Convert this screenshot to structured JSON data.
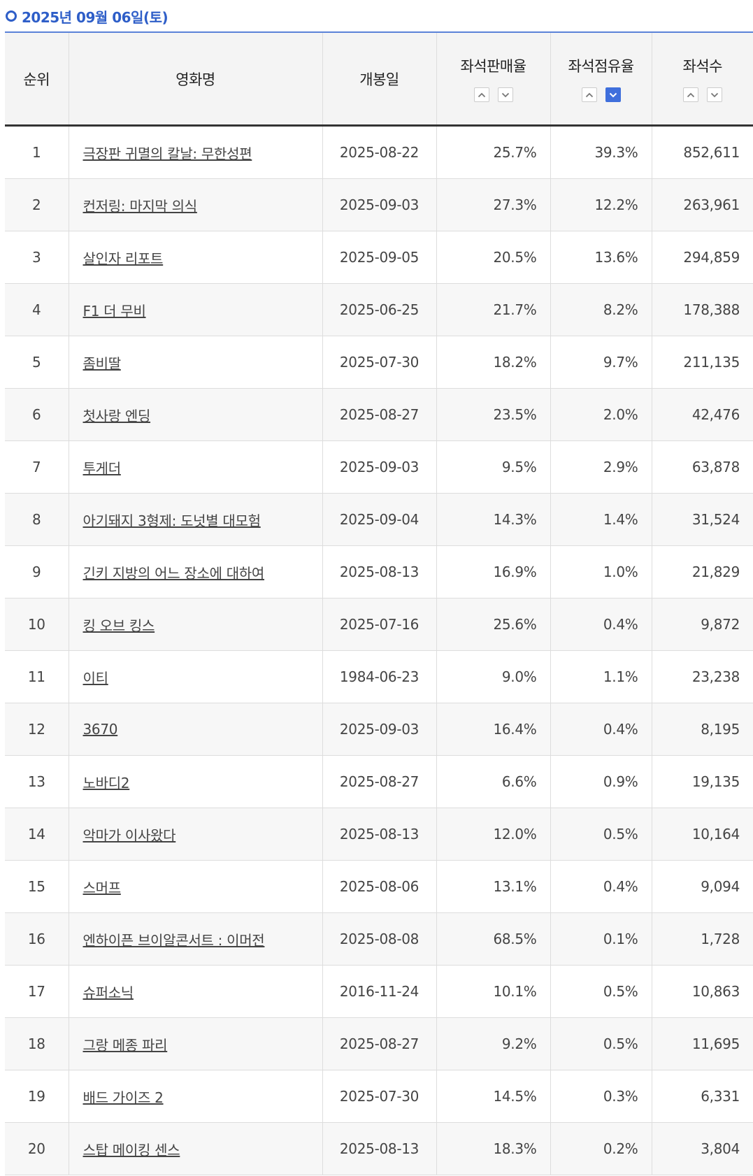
{
  "date_label": "2025년 09월 06일(토)",
  "colors": {
    "accent": "#2e5ec8",
    "active_sort": "#3f6fdc"
  },
  "headers": {
    "rank": "순위",
    "title": "영화명",
    "release": "개봉일",
    "sales_rate": "좌석판매율",
    "share_rate": "좌석점유율",
    "seats": "좌석수"
  },
  "sort_state": {
    "column": "share_rate",
    "direction": "desc"
  },
  "rows": [
    {
      "rank": "1",
      "title": "극장판 귀멸의 칼날: 무한성편",
      "release": "2025-08-22",
      "sales_rate": "25.7%",
      "share_rate": "39.3%",
      "seats": "852,611"
    },
    {
      "rank": "2",
      "title": "컨저링: 마지막 의식",
      "release": "2025-09-03",
      "sales_rate": "27.3%",
      "share_rate": "12.2%",
      "seats": "263,961"
    },
    {
      "rank": "3",
      "title": "살인자 리포트",
      "release": "2025-09-05",
      "sales_rate": "20.5%",
      "share_rate": "13.6%",
      "seats": "294,859"
    },
    {
      "rank": "4",
      "title": "F1 더 무비",
      "release": "2025-06-25",
      "sales_rate": "21.7%",
      "share_rate": "8.2%",
      "seats": "178,388"
    },
    {
      "rank": "5",
      "title": "좀비딸",
      "release": "2025-07-30",
      "sales_rate": "18.2%",
      "share_rate": "9.7%",
      "seats": "211,135"
    },
    {
      "rank": "6",
      "title": "첫사랑 엔딩",
      "release": "2025-08-27",
      "sales_rate": "23.5%",
      "share_rate": "2.0%",
      "seats": "42,476"
    },
    {
      "rank": "7",
      "title": "투게더",
      "release": "2025-09-03",
      "sales_rate": "9.5%",
      "share_rate": "2.9%",
      "seats": "63,878"
    },
    {
      "rank": "8",
      "title": "아기돼지 3형제: 도넛별 대모험",
      "release": "2025-09-04",
      "sales_rate": "14.3%",
      "share_rate": "1.4%",
      "seats": "31,524"
    },
    {
      "rank": "9",
      "title": "긴키 지방의 어느 장소에 대하여",
      "release": "2025-08-13",
      "sales_rate": "16.9%",
      "share_rate": "1.0%",
      "seats": "21,829"
    },
    {
      "rank": "10",
      "title": "킹 오브 킹스",
      "release": "2025-07-16",
      "sales_rate": "25.6%",
      "share_rate": "0.4%",
      "seats": "9,872"
    },
    {
      "rank": "11",
      "title": "이티",
      "release": "1984-06-23",
      "sales_rate": "9.0%",
      "share_rate": "1.1%",
      "seats": "23,238"
    },
    {
      "rank": "12",
      "title": "3670",
      "release": "2025-09-03",
      "sales_rate": "16.4%",
      "share_rate": "0.4%",
      "seats": "8,195"
    },
    {
      "rank": "13",
      "title": "노바디2",
      "release": "2025-08-27",
      "sales_rate": "6.6%",
      "share_rate": "0.9%",
      "seats": "19,135"
    },
    {
      "rank": "14",
      "title": "악마가 이사왔다",
      "release": "2025-08-13",
      "sales_rate": "12.0%",
      "share_rate": "0.5%",
      "seats": "10,164"
    },
    {
      "rank": "15",
      "title": "스머프",
      "release": "2025-08-06",
      "sales_rate": "13.1%",
      "share_rate": "0.4%",
      "seats": "9,094"
    },
    {
      "rank": "16",
      "title": "엔하이픈 브이알콘서트 : 이머전",
      "release": "2025-08-08",
      "sales_rate": "68.5%",
      "share_rate": "0.1%",
      "seats": "1,728"
    },
    {
      "rank": "17",
      "title": "슈퍼소닉",
      "release": "2016-11-24",
      "sales_rate": "10.1%",
      "share_rate": "0.5%",
      "seats": "10,863"
    },
    {
      "rank": "18",
      "title": "그랑 메종 파리",
      "release": "2025-08-27",
      "sales_rate": "9.2%",
      "share_rate": "0.5%",
      "seats": "11,695"
    },
    {
      "rank": "19",
      "title": "배드 가이즈 2",
      "release": "2025-07-30",
      "sales_rate": "14.5%",
      "share_rate": "0.3%",
      "seats": "6,331"
    },
    {
      "rank": "20",
      "title": "스탑 메이킹 센스",
      "release": "2025-08-13",
      "sales_rate": "18.3%",
      "share_rate": "0.2%",
      "seats": "3,804"
    }
  ]
}
